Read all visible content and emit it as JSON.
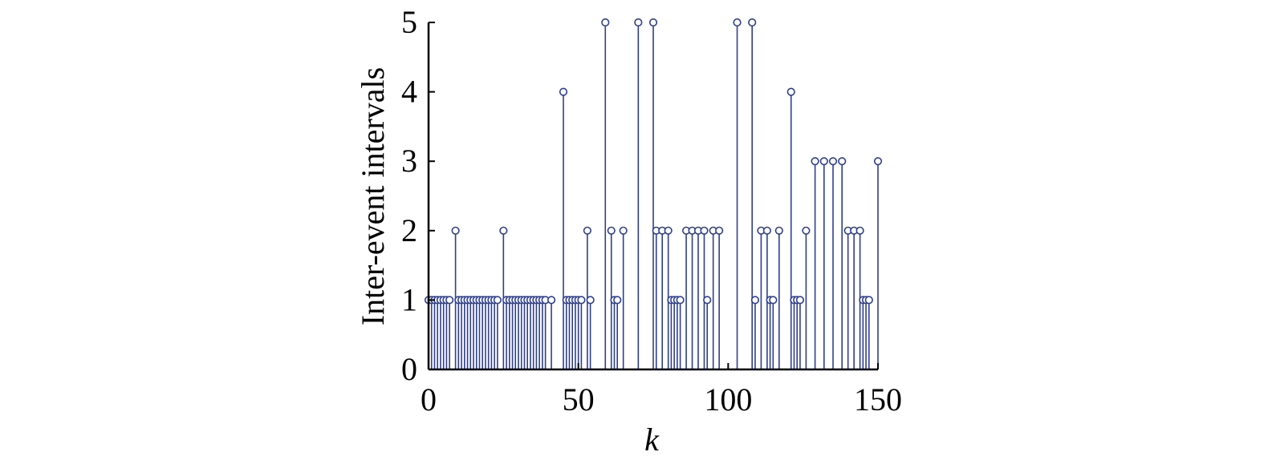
{
  "chart_data": {
    "type": "stem",
    "title": "",
    "xlabel": "k",
    "ylabel": "Inter-event intervals",
    "xlim": [
      0,
      150
    ],
    "ylim": [
      0,
      5
    ],
    "xticks": [
      0,
      50,
      100,
      150
    ],
    "yticks": [
      0,
      1,
      2,
      3,
      4,
      5
    ],
    "grid": false,
    "color": "#2e3f8f",
    "points": [
      {
        "x": 0,
        "y": 1
      },
      {
        "x": 1,
        "y": 1
      },
      {
        "x": 2,
        "y": 1
      },
      {
        "x": 3,
        "y": 1
      },
      {
        "x": 4,
        "y": 1
      },
      {
        "x": 5,
        "y": 1
      },
      {
        "x": 6,
        "y": 1
      },
      {
        "x": 7,
        "y": 1
      },
      {
        "x": 9,
        "y": 2
      },
      {
        "x": 10,
        "y": 1
      },
      {
        "x": 11,
        "y": 1
      },
      {
        "x": 12,
        "y": 1
      },
      {
        "x": 13,
        "y": 1
      },
      {
        "x": 14,
        "y": 1
      },
      {
        "x": 15,
        "y": 1
      },
      {
        "x": 16,
        "y": 1
      },
      {
        "x": 17,
        "y": 1
      },
      {
        "x": 18,
        "y": 1
      },
      {
        "x": 19,
        "y": 1
      },
      {
        "x": 20,
        "y": 1
      },
      {
        "x": 21,
        "y": 1
      },
      {
        "x": 22,
        "y": 1
      },
      {
        "x": 23,
        "y": 1
      },
      {
        "x": 25,
        "y": 2
      },
      {
        "x": 26,
        "y": 1
      },
      {
        "x": 27,
        "y": 1
      },
      {
        "x": 28,
        "y": 1
      },
      {
        "x": 29,
        "y": 1
      },
      {
        "x": 30,
        "y": 1
      },
      {
        "x": 31,
        "y": 1
      },
      {
        "x": 32,
        "y": 1
      },
      {
        "x": 33,
        "y": 1
      },
      {
        "x": 34,
        "y": 1
      },
      {
        "x": 35,
        "y": 1
      },
      {
        "x": 36,
        "y": 1
      },
      {
        "x": 37,
        "y": 1
      },
      {
        "x": 38,
        "y": 1
      },
      {
        "x": 39,
        "y": 1
      },
      {
        "x": 41,
        "y": 1
      },
      {
        "x": 45,
        "y": 4
      },
      {
        "x": 46,
        "y": 1
      },
      {
        "x": 47,
        "y": 1
      },
      {
        "x": 48,
        "y": 1
      },
      {
        "x": 49,
        "y": 1
      },
      {
        "x": 50,
        "y": 1
      },
      {
        "x": 51,
        "y": 1
      },
      {
        "x": 53,
        "y": 2
      },
      {
        "x": 54,
        "y": 1
      },
      {
        "x": 59,
        "y": 5
      },
      {
        "x": 61,
        "y": 2
      },
      {
        "x": 62,
        "y": 1
      },
      {
        "x": 63,
        "y": 1
      },
      {
        "x": 65,
        "y": 2
      },
      {
        "x": 70,
        "y": 5
      },
      {
        "x": 75,
        "y": 5
      },
      {
        "x": 76,
        "y": 2
      },
      {
        "x": 78,
        "y": 2
      },
      {
        "x": 80,
        "y": 2
      },
      {
        "x": 81,
        "y": 1
      },
      {
        "x": 82,
        "y": 1
      },
      {
        "x": 83,
        "y": 1
      },
      {
        "x": 84,
        "y": 1
      },
      {
        "x": 86,
        "y": 2
      },
      {
        "x": 88,
        "y": 2
      },
      {
        "x": 90,
        "y": 2
      },
      {
        "x": 92,
        "y": 2
      },
      {
        "x": 93,
        "y": 1
      },
      {
        "x": 95,
        "y": 2
      },
      {
        "x": 97,
        "y": 2
      },
      {
        "x": 103,
        "y": 5
      },
      {
        "x": 108,
        "y": 5
      },
      {
        "x": 109,
        "y": 1
      },
      {
        "x": 111,
        "y": 2
      },
      {
        "x": 113,
        "y": 2
      },
      {
        "x": 114,
        "y": 1
      },
      {
        "x": 115,
        "y": 1
      },
      {
        "x": 117,
        "y": 2
      },
      {
        "x": 121,
        "y": 4
      },
      {
        "x": 122,
        "y": 1
      },
      {
        "x": 123,
        "y": 1
      },
      {
        "x": 124,
        "y": 1
      },
      {
        "x": 126,
        "y": 2
      },
      {
        "x": 129,
        "y": 3
      },
      {
        "x": 132,
        "y": 3
      },
      {
        "x": 135,
        "y": 3
      },
      {
        "x": 138,
        "y": 3
      },
      {
        "x": 140,
        "y": 2
      },
      {
        "x": 142,
        "y": 2
      },
      {
        "x": 144,
        "y": 2
      },
      {
        "x": 145,
        "y": 1
      },
      {
        "x": 146,
        "y": 1
      },
      {
        "x": 147,
        "y": 1
      },
      {
        "x": 150,
        "y": 3
      }
    ]
  }
}
